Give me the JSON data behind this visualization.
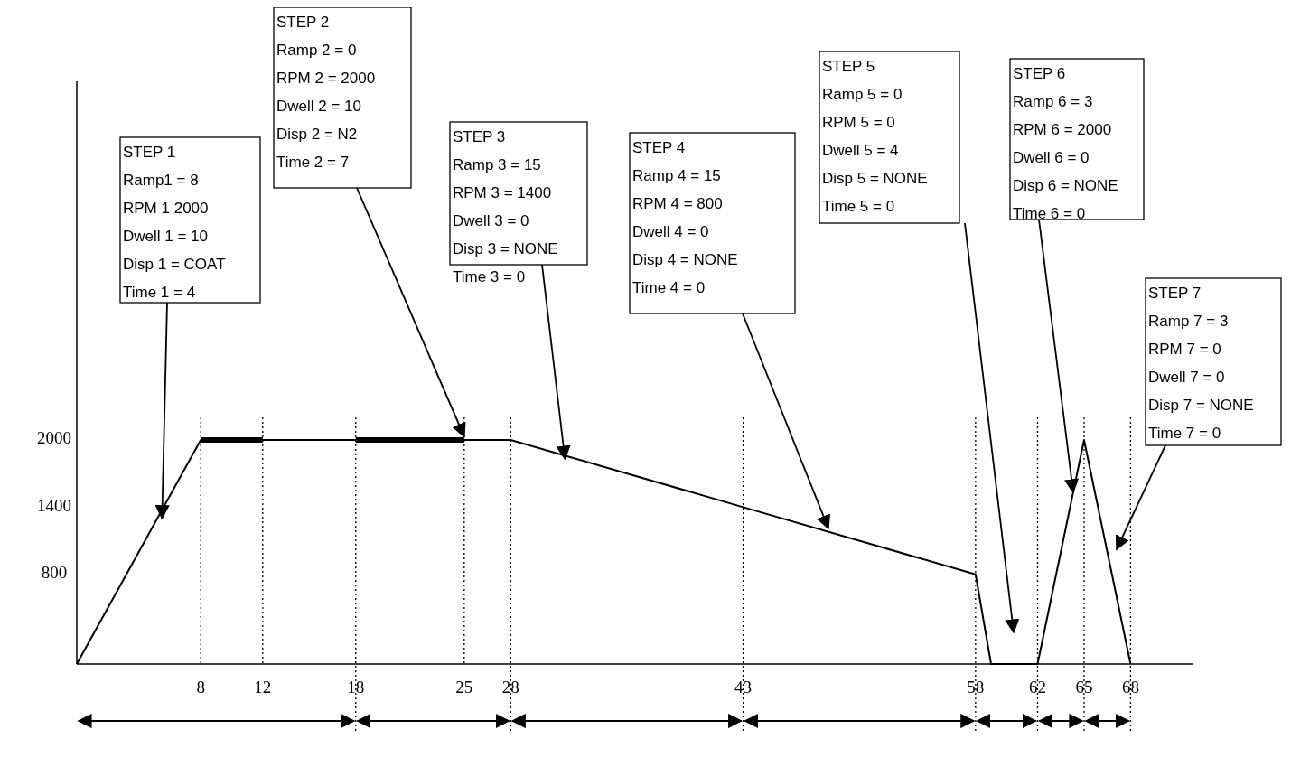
{
  "chart_data": {
    "type": "line",
    "xlim": [
      0,
      72
    ],
    "xticks": [
      8,
      12,
      18,
      25,
      28,
      43,
      58,
      62,
      65,
      68
    ],
    "ylim": [
      0,
      5200
    ],
    "yticks": [
      800,
      1400,
      2000
    ],
    "grid": false,
    "series": [
      {
        "color": "#000000",
        "x": [
          0,
          8,
          28,
          43,
          58,
          59,
          62,
          65,
          68
        ],
        "values": [
          0,
          2000,
          2000,
          1400,
          800,
          0,
          0,
          2000,
          0
        ]
      },
      {
        "color": "#000000",
        "x": [
          8,
          12
        ],
        "values": [
          2000,
          2000
        ]
      },
      {
        "color": "#000000",
        "x": [
          18,
          25
        ],
        "values": [
          2000,
          2000
        ]
      }
    ],
    "ref_lines": [
      {
        "axis": "x",
        "value": 8,
        "line_style": "dotted"
      },
      {
        "axis": "x",
        "value": 12,
        "line_style": "dotted"
      },
      {
        "axis": "x",
        "value": 18,
        "line_style": "dotted"
      },
      {
        "axis": "x",
        "value": 25,
        "line_style": "dotted"
      },
      {
        "axis": "x",
        "value": 28,
        "line_style": "dotted"
      },
      {
        "axis": "x",
        "value": 43,
        "line_style": "dotted"
      },
      {
        "axis": "x",
        "value": 58,
        "line_style": "dotted"
      },
      {
        "axis": "x",
        "value": 62,
        "line_style": "dotted"
      },
      {
        "axis": "x",
        "value": 65,
        "line_style": "dotted"
      },
      {
        "axis": "x",
        "value": 68,
        "line_style": "dotted"
      }
    ],
    "annotations": [
      {
        "text": "STEP 1\nRamp1 = 8\nRPM 1 2000\nDwell 1 = 10\nDisp 1 = COAT\nTime 1 = 4",
        "x": 5.5,
        "y": 1300
      },
      {
        "text": "STEP 2\nRamp 2 = 0\nRPM 2 = 2000\nDwell 2 = 10\nDisp 2 = N2\nTime 2 = 7",
        "x": 25,
        "y": 2030
      },
      {
        "text": "STEP 3\nRamp 3 = 15\nRPM 3 = 1400\nDwell 3 = 0\nDisp 3 = NONE\nTime 3 = 0",
        "x": 31.5,
        "y": 1830
      },
      {
        "text": "STEP 4\nRamp 4 = 15\nRPM 4 = 800\nDwell 4 = 0\nDisp 4 = NONE\nTime 4 = 0",
        "x": 48.5,
        "y": 1210
      },
      "STEP 5\nRamp 5 = 0\nRPM 5 = 0\nDwell 5 = 4\nDisp 5 = NONE\nTime 5 = 0",
      {
        "text": "STEP 6\nRamp 6 = 3\nRPM 6 = 2000\nDwell 6 = 0\nDisp 6 = NONE\nTime 6 = 0",
        "x": 64.3,
        "y": 1533
      },
      "STEP 7\nRamp 7 = 3\nRPM 7 = 0\nDwell 7 = 0\nDisp 7 = NONE\nTime 7 = 0"
    ]
  }
}
